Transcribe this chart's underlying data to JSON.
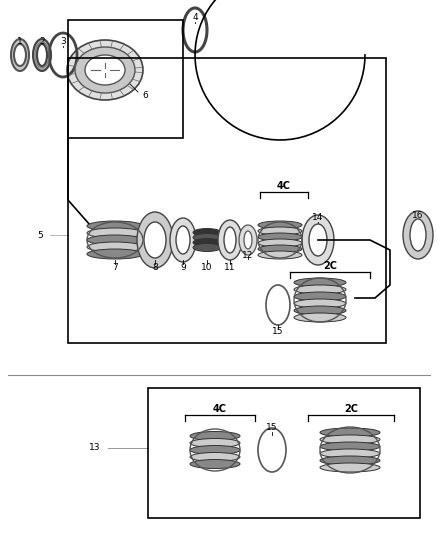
{
  "background_color": "#ffffff",
  "line_color": "#000000",
  "gray_dark": "#555555",
  "gray_mid": "#888888",
  "gray_light": "#bbbbbb",
  "gray_lighter": "#dddddd",
  "label_4C": "4C",
  "label_2C": "2C",
  "fig_width": 4.38,
  "fig_height": 5.33,
  "dpi": 100
}
